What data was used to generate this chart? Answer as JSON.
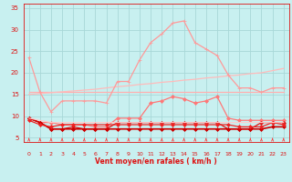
{
  "background_color": "#c8f0f0",
  "grid_color": "#a8d8d8",
  "xlabel": "Vent moyen/en rafales ( km/h )",
  "xlim": [
    -0.5,
    23.5
  ],
  "ylim": [
    4,
    36
  ],
  "yticks": [
    5,
    10,
    15,
    20,
    25,
    30,
    35
  ],
  "xticks": [
    0,
    1,
    2,
    3,
    4,
    5,
    6,
    7,
    8,
    9,
    10,
    11,
    12,
    13,
    14,
    15,
    16,
    17,
    18,
    19,
    20,
    21,
    22,
    23
  ],
  "lines": [
    {
      "y": [
        15.5,
        15.5,
        15.5,
        15.5,
        15.5,
        15.5,
        15.5,
        15.5,
        15.5,
        15.5,
        15.5,
        15.5,
        15.5,
        15.5,
        15.5,
        15.5,
        15.5,
        15.5,
        15.5,
        15.5,
        15.5,
        15.5,
        15.5,
        15.5
      ],
      "color": "#ffb0b0",
      "linewidth": 0.9,
      "marker": null
    },
    {
      "y": [
        15.0,
        15.2,
        15.4,
        15.6,
        15.8,
        16.0,
        16.2,
        16.5,
        16.8,
        17.0,
        17.3,
        17.5,
        17.8,
        18.0,
        18.3,
        18.5,
        18.8,
        19.0,
        19.3,
        19.5,
        19.8,
        20.0,
        20.5,
        21.0
      ],
      "color": "#ffbbbb",
      "linewidth": 0.9,
      "marker": null
    },
    {
      "y": [
        23.5,
        15.5,
        11.0,
        13.5,
        13.5,
        13.5,
        13.5,
        13.0,
        18.0,
        18.0,
        23.0,
        27.0,
        29.0,
        31.5,
        32.0,
        27.0,
        25.5,
        24.0,
        19.5,
        16.5,
        16.5,
        15.5,
        16.5,
        16.5
      ],
      "color": "#ff9999",
      "linewidth": 0.9,
      "marker": "+",
      "markersize": 3.5
    },
    {
      "y": [
        9.5,
        8.5,
        8.5,
        8.0,
        8.0,
        8.0,
        7.5,
        7.5,
        9.5,
        9.5,
        9.5,
        13.0,
        13.5,
        14.5,
        14.0,
        13.0,
        13.5,
        14.5,
        9.5,
        9.0,
        9.0,
        9.0,
        9.0,
        9.0
      ],
      "color": "#ff7777",
      "linewidth": 0.9,
      "marker": "D",
      "markersize": 2
    },
    {
      "y": [
        9.5,
        8.5,
        7.0,
        7.0,
        7.5,
        7.0,
        7.0,
        7.0,
        8.5,
        8.5,
        8.5,
        8.5,
        8.5,
        8.5,
        8.5,
        8.5,
        8.5,
        8.5,
        7.0,
        7.0,
        7.0,
        8.5,
        8.5,
        8.5
      ],
      "color": "#dd1111",
      "linewidth": 0.9,
      "marker": "D",
      "markersize": 2
    },
    {
      "y": [
        9.5,
        8.5,
        7.0,
        7.0,
        7.0,
        7.0,
        7.0,
        7.0,
        7.0,
        7.0,
        7.0,
        7.0,
        7.0,
        7.0,
        7.0,
        7.0,
        7.0,
        7.0,
        7.0,
        7.0,
        7.0,
        7.0,
        7.5,
        7.5
      ],
      "color": "#cc0000",
      "linewidth": 1.2,
      "marker": "D",
      "markersize": 2
    },
    {
      "y": [
        9.0,
        8.0,
        7.5,
        8.0,
        8.0,
        8.0,
        8.0,
        8.0,
        8.0,
        8.0,
        8.0,
        8.0,
        8.0,
        8.0,
        8.0,
        8.0,
        8.0,
        8.0,
        8.0,
        7.5,
        7.5,
        7.5,
        8.5,
        8.0
      ],
      "color": "#ee2222",
      "linewidth": 0.9,
      "marker": "D",
      "markersize": 2
    },
    {
      "y": [
        9.5,
        9.0,
        8.5,
        8.5,
        8.5,
        8.5,
        8.5,
        8.5,
        8.5,
        8.5,
        8.5,
        8.5,
        8.5,
        8.5,
        8.5,
        8.5,
        8.5,
        8.5,
        8.5,
        8.5,
        8.5,
        8.5,
        8.5,
        8.5
      ],
      "color": "#ffcccc",
      "linewidth": 0.8,
      "marker": null
    }
  ],
  "arrow_color": "#ff4444",
  "axis_label_color": "#dd1111",
  "tick_color": "#dd1111",
  "axis_fontsize": 5.5,
  "tick_fontsize": 5.0
}
